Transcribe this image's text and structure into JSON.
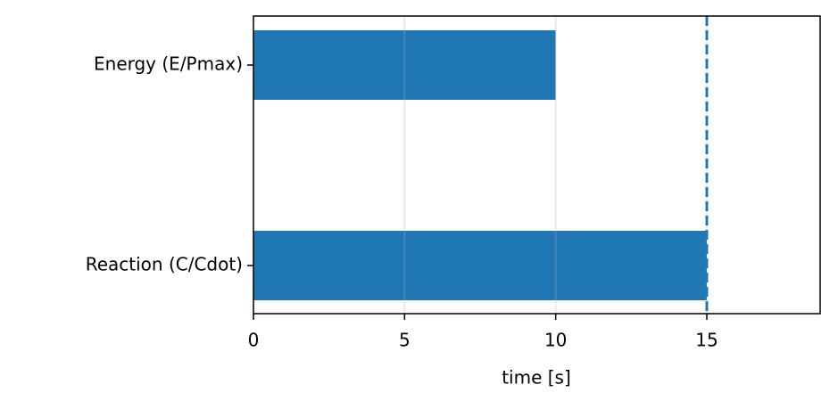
{
  "chart_data": {
    "type": "barh",
    "categories": [
      "Energy (E/Pmax)",
      "Reaction (C/Cdot)"
    ],
    "values": [
      10,
      15
    ],
    "color": "#1f77b4",
    "xlabel": "time [s]",
    "xlim": [
      0,
      18.75
    ],
    "xticks": [
      0,
      5,
      10,
      15
    ],
    "grid": true,
    "vline": {
      "value": 15,
      "color": "#1f77b4",
      "style": "dashed"
    }
  }
}
